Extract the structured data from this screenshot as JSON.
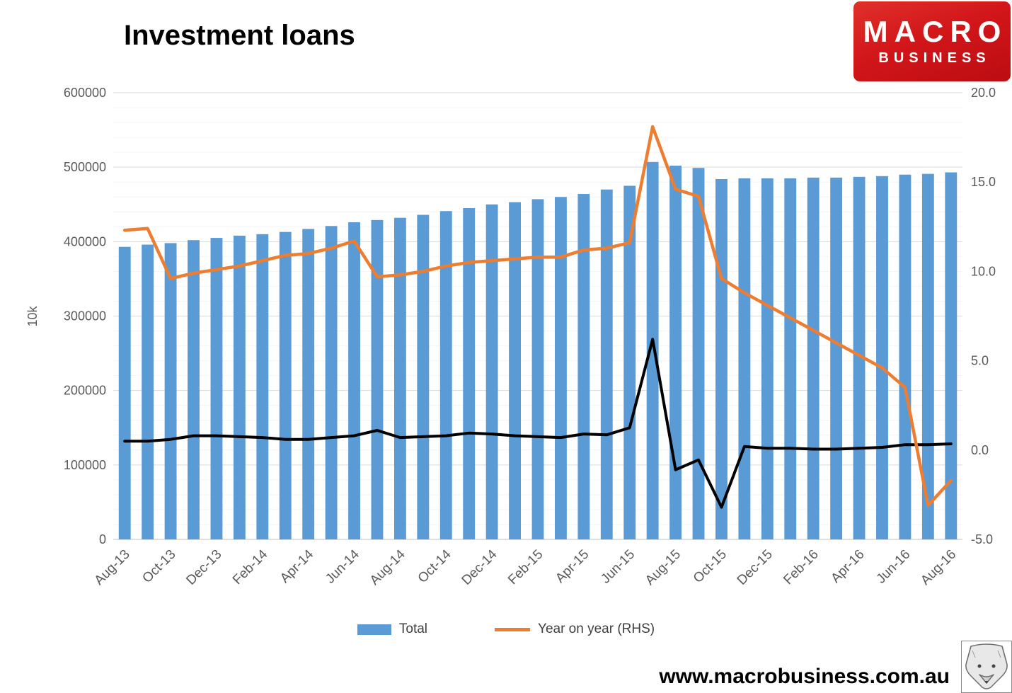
{
  "page": {
    "title": "Investment loans",
    "footer_url": "www.macrobusiness.com.au"
  },
  "logo": {
    "line1": "MACRO",
    "line2": "BUSINESS"
  },
  "legend": [
    {
      "label": "Total",
      "color": "#5B9BD5"
    },
    {
      "label": "Year on year (RHS)",
      "color": "#ED7D31"
    }
  ],
  "chart_data": {
    "type": "bar",
    "title": "Investment loans",
    "categories": [
      "Aug-13",
      "Sep-13",
      "Oct-13",
      "Nov-13",
      "Dec-13",
      "Jan-14",
      "Feb-14",
      "Mar-14",
      "Apr-14",
      "May-14",
      "Jun-14",
      "Jul-14",
      "Aug-14",
      "Sep-14",
      "Oct-14",
      "Nov-14",
      "Dec-14",
      "Jan-15",
      "Feb-15",
      "Mar-15",
      "Apr-15",
      "May-15",
      "Jun-15",
      "Jul-15",
      "Aug-15",
      "Sep-15",
      "Oct-15",
      "Nov-15",
      "Dec-15",
      "Jan-16",
      "Feb-16",
      "Mar-16",
      "Apr-16",
      "May-16",
      "Jun-16",
      "Jul-16",
      "Aug-16"
    ],
    "x_tick_labels": [
      "Aug-13",
      "Oct-13",
      "Dec-13",
      "Feb-14",
      "Apr-14",
      "Jun-14",
      "Aug-14",
      "Oct-14",
      "Dec-14",
      "Feb-15",
      "Apr-15",
      "Jun-15",
      "Aug-15",
      "Oct-15",
      "Dec-15",
      "Feb-16",
      "Apr-16",
      "Jun-16",
      "Aug-16"
    ],
    "x_tick_interval": 2,
    "series": [
      {
        "name": "Total",
        "kind": "bar",
        "axis": "left",
        "color": "#5B9BD5",
        "values": [
          393000,
          396000,
          398000,
          402000,
          405000,
          408000,
          410000,
          413000,
          417000,
          421000,
          426000,
          429000,
          432000,
          436000,
          441000,
          445000,
          450000,
          453000,
          457000,
          460000,
          464000,
          470000,
          475000,
          507000,
          502000,
          499000,
          484000,
          485000,
          485000,
          485000,
          486000,
          486000,
          487000,
          488000,
          490000,
          491000,
          493000
        ]
      },
      {
        "name": "Year on year (RHS)",
        "kind": "line",
        "axis": "right",
        "color": "#ED7D31",
        "values": [
          12.3,
          12.4,
          9.6,
          9.9,
          10.1,
          10.3,
          10.6,
          10.9,
          11.0,
          11.3,
          11.7,
          9.7,
          9.8,
          10.0,
          10.3,
          10.5,
          10.6,
          10.7,
          10.8,
          10.8,
          11.2,
          11.3,
          11.6,
          18.1,
          14.6,
          14.2,
          9.6,
          8.8,
          8.1,
          7.4,
          6.7,
          6.0,
          5.3,
          4.6,
          3.5,
          -3.1,
          -1.7
        ]
      },
      {
        "name": "(unlabeled black line)",
        "kind": "line",
        "axis": "right",
        "color": "#000000",
        "in_legend": false,
        "values": [
          0.5,
          0.5,
          0.6,
          0.8,
          0.8,
          0.75,
          0.7,
          0.6,
          0.6,
          0.7,
          0.8,
          1.1,
          0.7,
          0.75,
          0.8,
          0.95,
          0.9,
          0.8,
          0.75,
          0.7,
          0.9,
          0.85,
          1.25,
          6.2,
          -1.1,
          -0.55,
          -3.2,
          0.2,
          0.1,
          0.1,
          0.05,
          0.05,
          0.1,
          0.15,
          0.3,
          0.3,
          0.35
        ]
      }
    ],
    "left_axis": {
      "label": "10k",
      "min": 0,
      "max": 600000,
      "tick_step": 100000,
      "tick_labels": [
        "600000",
        "500000",
        "400000",
        "300000",
        "200000",
        "100000",
        "0"
      ]
    },
    "right_axis": {
      "min": -5,
      "max": 20,
      "tick_step": 5,
      "tick_labels": [
        "20.0",
        "15.0",
        "10.0",
        "5.0",
        "0.0",
        "-5.0"
      ]
    },
    "grid": {
      "major_step": 100000,
      "minor_step": 20000,
      "on": true
    },
    "legend_position": "bottom"
  }
}
